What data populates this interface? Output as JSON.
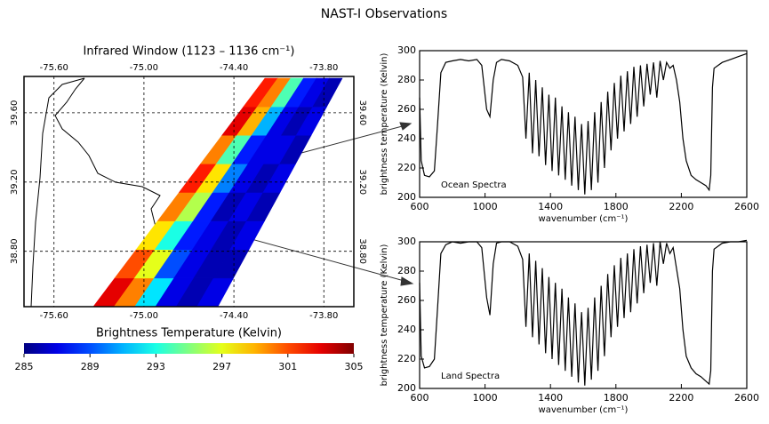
{
  "title": "NAST-I Observations",
  "chart_data": [
    {
      "type": "map",
      "title": "Infrared Window (1123 – 1136 cm⁻¹)",
      "xlim": [
        -75.8,
        -73.6
      ],
      "ylim": [
        38.48,
        39.81
      ],
      "xticks": [
        {
          "value": -75.6,
          "label": "-75.60"
        },
        {
          "value": -75.0,
          "label": "-75.00"
        },
        {
          "value": -74.4,
          "label": "-74.40"
        },
        {
          "value": -73.8,
          "label": "-73.80"
        }
      ],
      "yticks": [
        {
          "value": 38.8,
          "label": "38.80"
        },
        {
          "value": 39.2,
          "label": "39.20"
        },
        {
          "value": 39.6,
          "label": "39.60"
        }
      ],
      "grid": true,
      "swath": {
        "values": [
          [
            303,
            300,
            292,
            287,
            286,
            287
          ],
          [
            301,
            297,
            289,
            287,
            286,
            286
          ],
          [
            298,
            293,
            288,
            287,
            286,
            287
          ],
          [
            300,
            296,
            288,
            286,
            287,
            286
          ],
          [
            302,
            298,
            290,
            287,
            286,
            287
          ],
          [
            300,
            294,
            288,
            287,
            287,
            286
          ],
          [
            303,
            299,
            291,
            287,
            286,
            287
          ],
          [
            302,
            300,
            294,
            288,
            287,
            286
          ]
        ]
      },
      "colorbar": {
        "label": "Brightness Temperature (Kelvin)",
        "lim": [
          285,
          305
        ],
        "ticks": [
          285,
          289,
          293,
          297,
          301,
          305
        ]
      }
    },
    {
      "type": "line",
      "annotation": "Ocean Spectra",
      "xlabel": "wavenumber (cm⁻¹)",
      "ylabel": "brightness temperature (Kelvin)",
      "xlim": [
        600,
        2600
      ],
      "ylim": [
        200,
        300
      ],
      "xticks": [
        600,
        1000,
        1400,
        1800,
        2200,
        2600
      ],
      "yticks": [
        200,
        220,
        240,
        260,
        280,
        300
      ],
      "series": [
        {
          "color": "#000000",
          "x": [
            600,
            610,
            630,
            660,
            690,
            710,
            730,
            760,
            800,
            850,
            900,
            950,
            980,
            1010,
            1030,
            1050,
            1070,
            1100,
            1150,
            1200,
            1230,
            1250,
            1270,
            1290,
            1310,
            1330,
            1350,
            1370,
            1390,
            1410,
            1430,
            1450,
            1470,
            1490,
            1510,
            1530,
            1550,
            1570,
            1590,
            1610,
            1630,
            1650,
            1670,
            1690,
            1710,
            1730,
            1750,
            1770,
            1790,
            1810,
            1830,
            1850,
            1870,
            1890,
            1910,
            1930,
            1950,
            1970,
            1990,
            2010,
            2030,
            2050,
            2070,
            2090,
            2110,
            2130,
            2150,
            2170,
            2190,
            2210,
            2230,
            2260,
            2290,
            2320,
            2350,
            2370,
            2380,
            2390,
            2400,
            2450,
            2500,
            2550,
            2600
          ],
          "values": [
            268,
            225,
            215,
            214,
            218,
            250,
            285,
            292,
            293,
            294,
            293,
            294,
            290,
            260,
            255,
            280,
            292,
            294,
            293,
            290,
            282,
            240,
            285,
            230,
            280,
            228,
            275,
            222,
            270,
            218,
            268,
            215,
            262,
            212,
            258,
            208,
            255,
            205,
            250,
            202,
            252,
            205,
            258,
            210,
            265,
            220,
            272,
            232,
            278,
            240,
            283,
            245,
            286,
            250,
            289,
            255,
            290,
            262,
            291,
            270,
            292,
            268,
            293,
            280,
            292,
            288,
            290,
            280,
            265,
            240,
            225,
            215,
            212,
            210,
            208,
            205,
            215,
            275,
            288,
            292,
            294,
            296,
            298
          ]
        }
      ]
    },
    {
      "type": "line",
      "annotation": "Land Spectra",
      "xlabel": "wavenumber (cm⁻¹)",
      "ylabel": "brightness temperature (Kelvin)",
      "xlim": [
        600,
        2600
      ],
      "ylim": [
        200,
        300
      ],
      "xticks": [
        600,
        1000,
        1400,
        1800,
        2200,
        2600
      ],
      "yticks": [
        200,
        220,
        240,
        260,
        280,
        300
      ],
      "series": [
        {
          "color": "#000000",
          "x": [
            600,
            610,
            630,
            660,
            690,
            710,
            730,
            760,
            800,
            850,
            900,
            950,
            980,
            1010,
            1030,
            1050,
            1070,
            1100,
            1150,
            1200,
            1230,
            1250,
            1270,
            1290,
            1310,
            1330,
            1350,
            1370,
            1390,
            1410,
            1430,
            1450,
            1470,
            1490,
            1510,
            1530,
            1550,
            1570,
            1590,
            1610,
            1630,
            1650,
            1670,
            1690,
            1710,
            1730,
            1750,
            1770,
            1790,
            1810,
            1830,
            1850,
            1870,
            1890,
            1910,
            1930,
            1950,
            1970,
            1990,
            2010,
            2030,
            2050,
            2070,
            2090,
            2110,
            2130,
            2150,
            2170,
            2190,
            2210,
            2230,
            2260,
            2290,
            2320,
            2350,
            2370,
            2380,
            2390,
            2400,
            2450,
            2500,
            2550,
            2600
          ],
          "values": [
            272,
            222,
            214,
            215,
            220,
            255,
            292,
            298,
            300,
            299,
            300,
            300,
            296,
            262,
            250,
            285,
            299,
            300,
            300,
            297,
            288,
            242,
            292,
            235,
            287,
            230,
            282,
            224,
            276,
            220,
            272,
            216,
            268,
            212,
            262,
            208,
            258,
            204,
            252,
            202,
            255,
            206,
            262,
            212,
            270,
            222,
            278,
            235,
            284,
            242,
            289,
            248,
            292,
            252,
            295,
            258,
            297,
            265,
            298,
            272,
            299,
            270,
            300,
            285,
            299,
            292,
            296,
            282,
            268,
            240,
            222,
            214,
            210,
            208,
            205,
            203,
            212,
            280,
            295,
            299,
            300,
            300,
            301
          ]
        }
      ]
    }
  ]
}
